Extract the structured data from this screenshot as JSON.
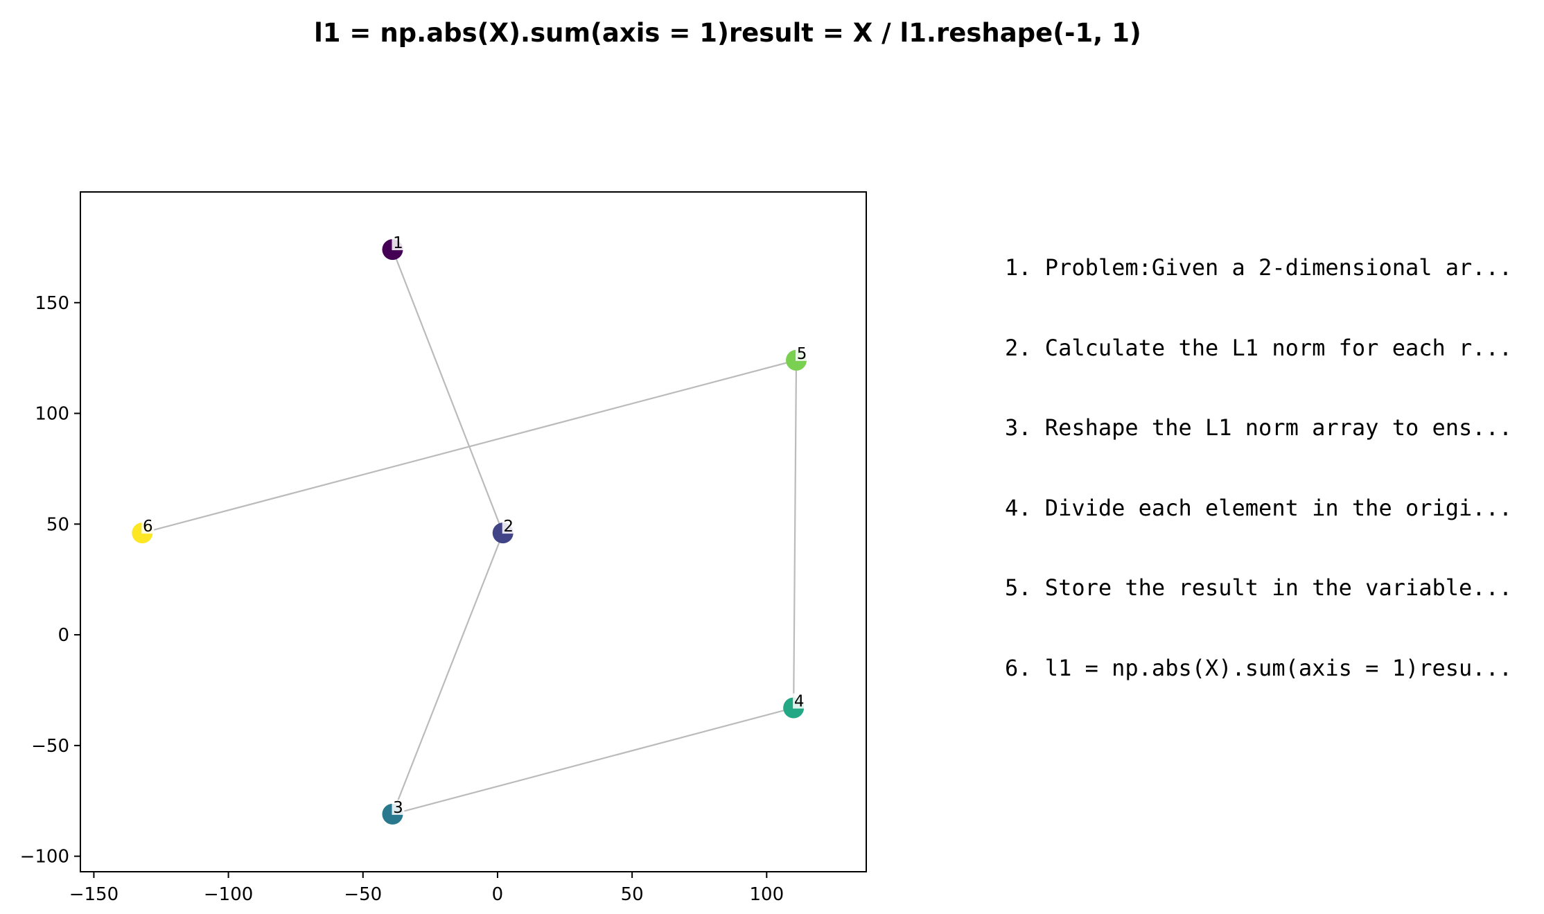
{
  "chart_data": {
    "type": "scatter",
    "title": "l1 = np.abs(X).sum(axis = 1)result = X / l1.reshape(-1, 1)",
    "xlabel": "",
    "ylabel": "",
    "xlim": [
      -155,
      137
    ],
    "ylim": [
      -107,
      200
    ],
    "xticks": [
      -150,
      -100,
      -50,
      0,
      50,
      100
    ],
    "yticks": [
      -100,
      -50,
      0,
      50,
      100,
      150
    ],
    "xtick_labels": [
      "−150",
      "−100",
      "−50",
      "0",
      "50",
      "100"
    ],
    "ytick_labels": [
      "−100",
      "−50",
      "0",
      "50",
      "100",
      "150"
    ],
    "grid": false,
    "connect_points_in_order": true,
    "line_color": "#bbbbbb",
    "points": [
      {
        "label": "1",
        "x": -39,
        "y": 174,
        "color": "#440154"
      },
      {
        "label": "2",
        "x": 2,
        "y": 46,
        "color": "#414487"
      },
      {
        "label": "3",
        "x": -39,
        "y": -81,
        "color": "#2a788e"
      },
      {
        "label": "4",
        "x": 110,
        "y": -33,
        "color": "#22a884"
      },
      {
        "label": "5",
        "x": 111,
        "y": 124,
        "color": "#7ad151"
      },
      {
        "label": "6",
        "x": -132,
        "y": 46,
        "color": "#fde725"
      }
    ]
  },
  "steps": [
    "1. Problem:Given a 2-dimensional ar...",
    "2. Calculate the L1 norm for each r...",
    "3. Reshape the L1 norm array to ens...",
    "4. Divide each element in the origi...",
    "5. Store the result in the variable...",
    "6. l1 = np.abs(X).sum(axis = 1)resu..."
  ]
}
